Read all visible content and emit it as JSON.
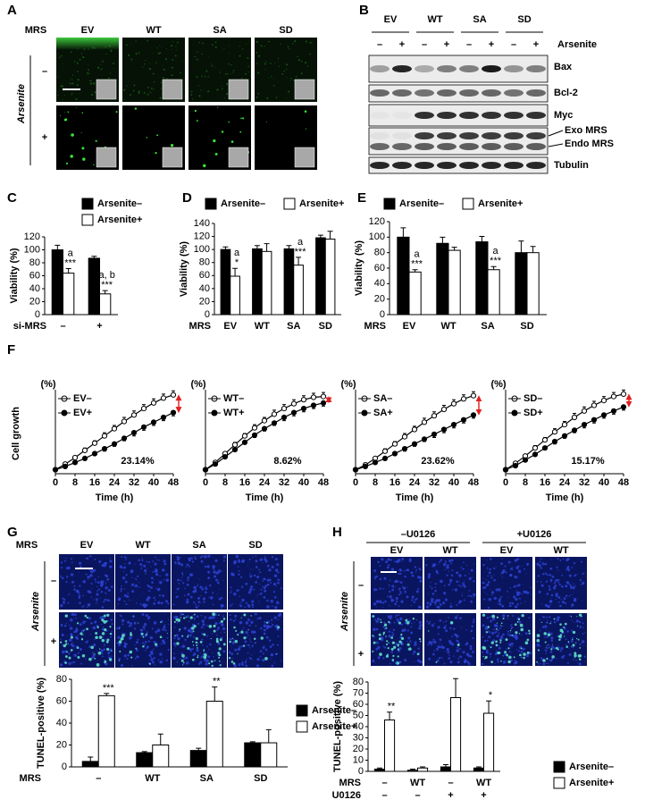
{
  "figure": {
    "panel_labels": [
      "A",
      "B",
      "C",
      "D",
      "E",
      "F",
      "G",
      "H"
    ],
    "a": {
      "row_label": "MRS",
      "columns": [
        "EV",
        "WT",
        "SA",
        "SD"
      ],
      "side_label": "Arsenite",
      "rows": [
        "–",
        "+"
      ]
    },
    "b": {
      "columns": [
        "EV",
        "WT",
        "SA",
        "SD"
      ],
      "treatment_label": "Arsenite",
      "treatment": [
        "–",
        "+"
      ],
      "bands": [
        "Bax",
        "Bcl-2",
        "Myc",
        "Exo MRS",
        "Endo MRS",
        "Tubulin"
      ]
    },
    "g": {
      "row_label": "MRS",
      "columns": [
        "EV",
        "WT",
        "SA",
        "SD"
      ],
      "side_label": "Arsenite",
      "rows": [
        "–",
        "+"
      ]
    },
    "h": {
      "groups": [
        "–U0126",
        "+U0126"
      ],
      "columns": [
        "EV",
        "WT",
        "EV",
        "WT"
      ],
      "side_label": "Arsenite",
      "rows": [
        "–",
        "+"
      ]
    }
  },
  "chart_data": [
    {
      "type": "bar",
      "ylabel": "Viability (%)",
      "xlabel": "si-MRS",
      "categories": [
        "–",
        "+"
      ],
      "ylim": [
        0,
        120
      ],
      "yticks": [
        0,
        20,
        40,
        60,
        80,
        100,
        120
      ],
      "series": [
        {
          "name": "Arsenite–",
          "color": "#000000",
          "values": [
            100,
            87
          ],
          "errors": [
            7,
            3
          ]
        },
        {
          "name": "Arsenite+",
          "color": "#ffffff",
          "values": [
            64,
            32
          ],
          "errors": [
            7,
            5
          ],
          "significance": [
            [
              "a",
              "***"
            ],
            [
              "a, b",
              "***"
            ]
          ]
        }
      ]
    },
    {
      "type": "bar",
      "ylabel": "Viability (%)",
      "xlabel": "MRS",
      "categories": [
        "EV",
        "WT",
        "SA",
        "SD"
      ],
      "ylim": [
        0,
        140
      ],
      "yticks": [
        0,
        20,
        40,
        60,
        80,
        100,
        120,
        140
      ],
      "series": [
        {
          "name": "Arsenite–",
          "color": "#000000",
          "values": [
            100,
            101,
            101,
            118
          ],
          "errors": [
            4,
            5,
            5,
            4
          ]
        },
        {
          "name": "Arsenite+",
          "color": "#ffffff",
          "values": [
            59,
            97,
            76,
            116
          ],
          "errors": [
            12,
            12,
            12,
            12
          ],
          "significance": [
            [
              "a",
              "*"
            ],
            [],
            [
              "a",
              "***"
            ],
            []
          ]
        }
      ]
    },
    {
      "type": "bar",
      "ylabel": "Viability (%)",
      "xlabel": "MRS",
      "categories": [
        "EV",
        "WT",
        "SA",
        "SD"
      ],
      "ylim": [
        0,
        120
      ],
      "yticks": [
        0,
        20,
        40,
        60,
        80,
        100,
        120
      ],
      "series": [
        {
          "name": "Arsenite–",
          "color": "#000000",
          "values": [
            100,
            92,
            94,
            80
          ],
          "errors": [
            12,
            8,
            7,
            15
          ]
        },
        {
          "name": "Arsenite+",
          "color": "#ffffff",
          "values": [
            55,
            83,
            58,
            80
          ],
          "errors": [
            3,
            4,
            4,
            8
          ],
          "significance": [
            [
              "a",
              "***"
            ],
            [],
            [
              "a",
              "***"
            ],
            []
          ]
        }
      ]
    },
    {
      "type": "line",
      "ylabel": "Cell growth",
      "yunit": "(%)",
      "xlabel": "Time (h)",
      "annotation": "23.14%",
      "x": [
        0,
        4,
        8,
        12,
        16,
        20,
        24,
        28,
        32,
        36,
        40,
        44,
        48
      ],
      "xlim": [
        0,
        48
      ],
      "xticks": [
        0,
        8,
        16,
        24,
        32,
        40,
        48
      ],
      "ylim": [
        0,
        100
      ],
      "series": [
        {
          "name": "EV–",
          "color": "#000000",
          "marker": "open",
          "values": [
            5,
            12,
            20,
            29,
            38,
            47,
            56,
            65,
            73,
            81,
            88,
            94,
            98
          ],
          "errors": [
            1,
            2,
            2,
            3,
            3,
            4,
            4,
            5,
            5,
            5,
            5,
            5,
            5
          ]
        },
        {
          "name": "EV+",
          "color": "#000000",
          "marker": "filled",
          "values": [
            5,
            9,
            14,
            19,
            25,
            31,
            37,
            44,
            51,
            58,
            64,
            70,
            76
          ],
          "errors": [
            1,
            1,
            2,
            2,
            2,
            3,
            3,
            3,
            4,
            4,
            4,
            4,
            4
          ]
        }
      ]
    },
    {
      "type": "line",
      "yunit": "(%)",
      "xlabel": "Time (h)",
      "annotation": "8.62%",
      "x": [
        0,
        4,
        8,
        12,
        16,
        20,
        24,
        28,
        32,
        36,
        40,
        44,
        48
      ],
      "xlim": [
        0,
        48
      ],
      "xticks": [
        0,
        8,
        16,
        24,
        32,
        40,
        48
      ],
      "ylim": [
        0,
        100
      ],
      "series": [
        {
          "name": "WT–",
          "color": "#000000",
          "marker": "open",
          "values": [
            5,
            14,
            25,
            36,
            47,
            57,
            66,
            74,
            81,
            87,
            92,
            95,
            96
          ],
          "errors": [
            1,
            2,
            2,
            3,
            3,
            4,
            4,
            5,
            5,
            5,
            5,
            5,
            5
          ]
        },
        {
          "name": "WT+",
          "color": "#000000",
          "marker": "filled",
          "values": [
            5,
            12,
            21,
            30,
            39,
            48,
            56,
            63,
            70,
            76,
            81,
            85,
            88
          ],
          "errors": [
            1,
            1,
            2,
            2,
            2,
            3,
            3,
            3,
            4,
            4,
            4,
            4,
            4
          ]
        }
      ]
    },
    {
      "type": "line",
      "yunit": "(%)",
      "xlabel": "Time (h)",
      "annotation": "23.62%",
      "x": [
        0,
        4,
        8,
        12,
        16,
        20,
        24,
        28,
        32,
        36,
        40,
        44,
        48
      ],
      "xlim": [
        0,
        48
      ],
      "xticks": [
        0,
        8,
        16,
        24,
        32,
        40,
        48
      ],
      "ylim": [
        0,
        100
      ],
      "series": [
        {
          "name": "SA–",
          "color": "#000000",
          "marker": "open",
          "values": [
            5,
            11,
            19,
            28,
            37,
            46,
            55,
            64,
            72,
            80,
            87,
            93,
            97
          ],
          "errors": [
            1,
            2,
            2,
            3,
            3,
            4,
            4,
            5,
            5,
            5,
            5,
            5,
            5
          ]
        },
        {
          "name": "SA+",
          "color": "#000000",
          "marker": "filled",
          "values": [
            5,
            9,
            14,
            19,
            25,
            31,
            37,
            43,
            49,
            55,
            61,
            67,
            73
          ],
          "errors": [
            1,
            1,
            2,
            2,
            2,
            3,
            3,
            3,
            4,
            4,
            4,
            4,
            4
          ]
        }
      ]
    },
    {
      "type": "line",
      "yunit": "(%)",
      "xlabel": "Time (h)",
      "annotation": "15.17%",
      "x": [
        0,
        4,
        8,
        12,
        16,
        20,
        24,
        28,
        32,
        36,
        40,
        44,
        48
      ],
      "xlim": [
        0,
        48
      ],
      "xticks": [
        0,
        8,
        16,
        24,
        32,
        40,
        48
      ],
      "ylim": [
        0,
        100
      ],
      "series": [
        {
          "name": "SD–",
          "color": "#000000",
          "marker": "open",
          "values": [
            5,
            13,
            22,
            32,
            42,
            52,
            61,
            70,
            78,
            85,
            91,
            96,
            99
          ],
          "errors": [
            1,
            2,
            2,
            3,
            3,
            4,
            4,
            5,
            5,
            5,
            5,
            5,
            5
          ]
        },
        {
          "name": "SD+",
          "color": "#000000",
          "marker": "filled",
          "values": [
            5,
            10,
            17,
            24,
            32,
            40,
            47,
            54,
            61,
            67,
            73,
            78,
            83
          ],
          "errors": [
            1,
            1,
            2,
            2,
            2,
            3,
            3,
            3,
            4,
            4,
            4,
            4,
            4
          ]
        }
      ]
    },
    {
      "type": "bar",
      "ylabel": "TUNEL-positive (%)",
      "xlabel": "MRS",
      "categories": [
        "–",
        "WT",
        "SA",
        "SD"
      ],
      "ylim": [
        0,
        80
      ],
      "yticks": [
        0,
        20,
        40,
        60,
        80
      ],
      "series": [
        {
          "name": "Arsenite–",
          "color": "#000000",
          "values": [
            5,
            13,
            15,
            22
          ],
          "errors": [
            4,
            1,
            2,
            1
          ]
        },
        {
          "name": "Arsenite+",
          "color": "#ffffff",
          "values": [
            65,
            20,
            60,
            22
          ],
          "errors": [
            2,
            10,
            13,
            12
          ],
          "significance": [
            [
              "***"
            ],
            [],
            [
              "**"
            ],
            []
          ]
        }
      ]
    },
    {
      "type": "bar",
      "ylabel": "TUNEL-positive (%)",
      "xlabels": [
        "MRS",
        "U0126"
      ],
      "categories": [
        "–",
        "WT",
        "–",
        "WT"
      ],
      "categories2": [
        "–",
        "–",
        "+",
        "+"
      ],
      "ylim": [
        0,
        80
      ],
      "yticks": [
        0,
        10,
        20,
        30,
        40,
        50,
        60,
        70,
        80
      ],
      "series": [
        {
          "name": "Arsenite–",
          "color": "#000000",
          "values": [
            2,
            1,
            4,
            3
          ],
          "errors": [
            1,
            1,
            2,
            1
          ]
        },
        {
          "name": "Arsenite+",
          "color": "#ffffff",
          "values": [
            46,
            3,
            66,
            52
          ],
          "errors": [
            7,
            1,
            17,
            11
          ],
          "significance": [
            [
              "**"
            ],
            [],
            [],
            [
              "*"
            ]
          ]
        }
      ]
    }
  ]
}
